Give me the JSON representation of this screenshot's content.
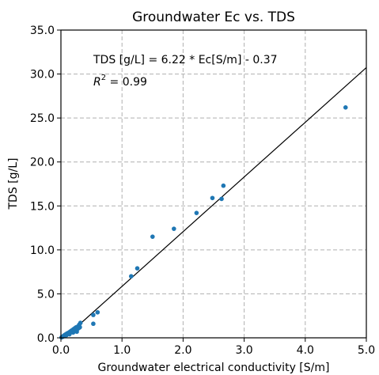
{
  "chart_data": {
    "type": "scatter",
    "title": "Groundwater Ec vs. TDS",
    "xlabel": "Groundwater electrical conductivity [S/m]",
    "ylabel": "TDS [g/L]",
    "xlim": [
      0.0,
      5.0
    ],
    "ylim": [
      0.0,
      35.0
    ],
    "xticks": [
      "0.0",
      "1.0",
      "2.0",
      "3.0",
      "4.0",
      "5.0"
    ],
    "yticks": [
      "0.0",
      "5.0",
      "10.0",
      "15.0",
      "20.0",
      "25.0",
      "30.0",
      "35.0"
    ],
    "grid": true,
    "grid_style": "dashed",
    "point_color": "#1f77b4",
    "line_color": "#000000",
    "annotation_equation": "TDS [g/L] = 6.22 * Ec[S/m] - 0.37",
    "annotation_r2_symbol": "R",
    "annotation_r2_exponent": "2",
    "annotation_r2_value": " = 0.99",
    "fit": {
      "slope": 6.22,
      "intercept": -0.37
    },
    "points": [
      {
        "x": 0.01,
        "y": 0.05
      },
      {
        "x": 0.02,
        "y": 0.1
      },
      {
        "x": 0.03,
        "y": 0.12
      },
      {
        "x": 0.04,
        "y": 0.2
      },
      {
        "x": 0.05,
        "y": 0.25
      },
      {
        "x": 0.06,
        "y": 0.3
      },
      {
        "x": 0.07,
        "y": 0.35
      },
      {
        "x": 0.08,
        "y": 0.4
      },
      {
        "x": 0.09,
        "y": 0.3
      },
      {
        "x": 0.1,
        "y": 0.5
      },
      {
        "x": 0.11,
        "y": 0.45
      },
      {
        "x": 0.12,
        "y": 0.55
      },
      {
        "x": 0.13,
        "y": 0.6
      },
      {
        "x": 0.14,
        "y": 0.4
      },
      {
        "x": 0.15,
        "y": 0.7
      },
      {
        "x": 0.16,
        "y": 0.6
      },
      {
        "x": 0.17,
        "y": 0.8
      },
      {
        "x": 0.18,
        "y": 0.7
      },
      {
        "x": 0.19,
        "y": 0.9
      },
      {
        "x": 0.2,
        "y": 0.6
      },
      {
        "x": 0.21,
        "y": 1.0
      },
      {
        "x": 0.22,
        "y": 0.8
      },
      {
        "x": 0.23,
        "y": 1.1
      },
      {
        "x": 0.24,
        "y": 0.9
      },
      {
        "x": 0.25,
        "y": 1.2
      },
      {
        "x": 0.26,
        "y": 0.7
      },
      {
        "x": 0.27,
        "y": 1.0
      },
      {
        "x": 0.28,
        "y": 1.3
      },
      {
        "x": 0.29,
        "y": 1.1
      },
      {
        "x": 0.3,
        "y": 1.5
      },
      {
        "x": 0.31,
        "y": 1.2
      },
      {
        "x": 0.32,
        "y": 1.7
      },
      {
        "x": 0.53,
        "y": 1.6
      },
      {
        "x": 0.53,
        "y": 2.6
      },
      {
        "x": 0.6,
        "y": 2.9
      },
      {
        "x": 1.15,
        "y": 7.0
      },
      {
        "x": 1.25,
        "y": 7.9
      },
      {
        "x": 1.5,
        "y": 11.5
      },
      {
        "x": 1.85,
        "y": 12.4
      },
      {
        "x": 2.22,
        "y": 14.2
      },
      {
        "x": 2.48,
        "y": 15.9
      },
      {
        "x": 2.63,
        "y": 15.8
      },
      {
        "x": 2.66,
        "y": 17.3
      },
      {
        "x": 4.66,
        "y": 26.2
      }
    ]
  }
}
